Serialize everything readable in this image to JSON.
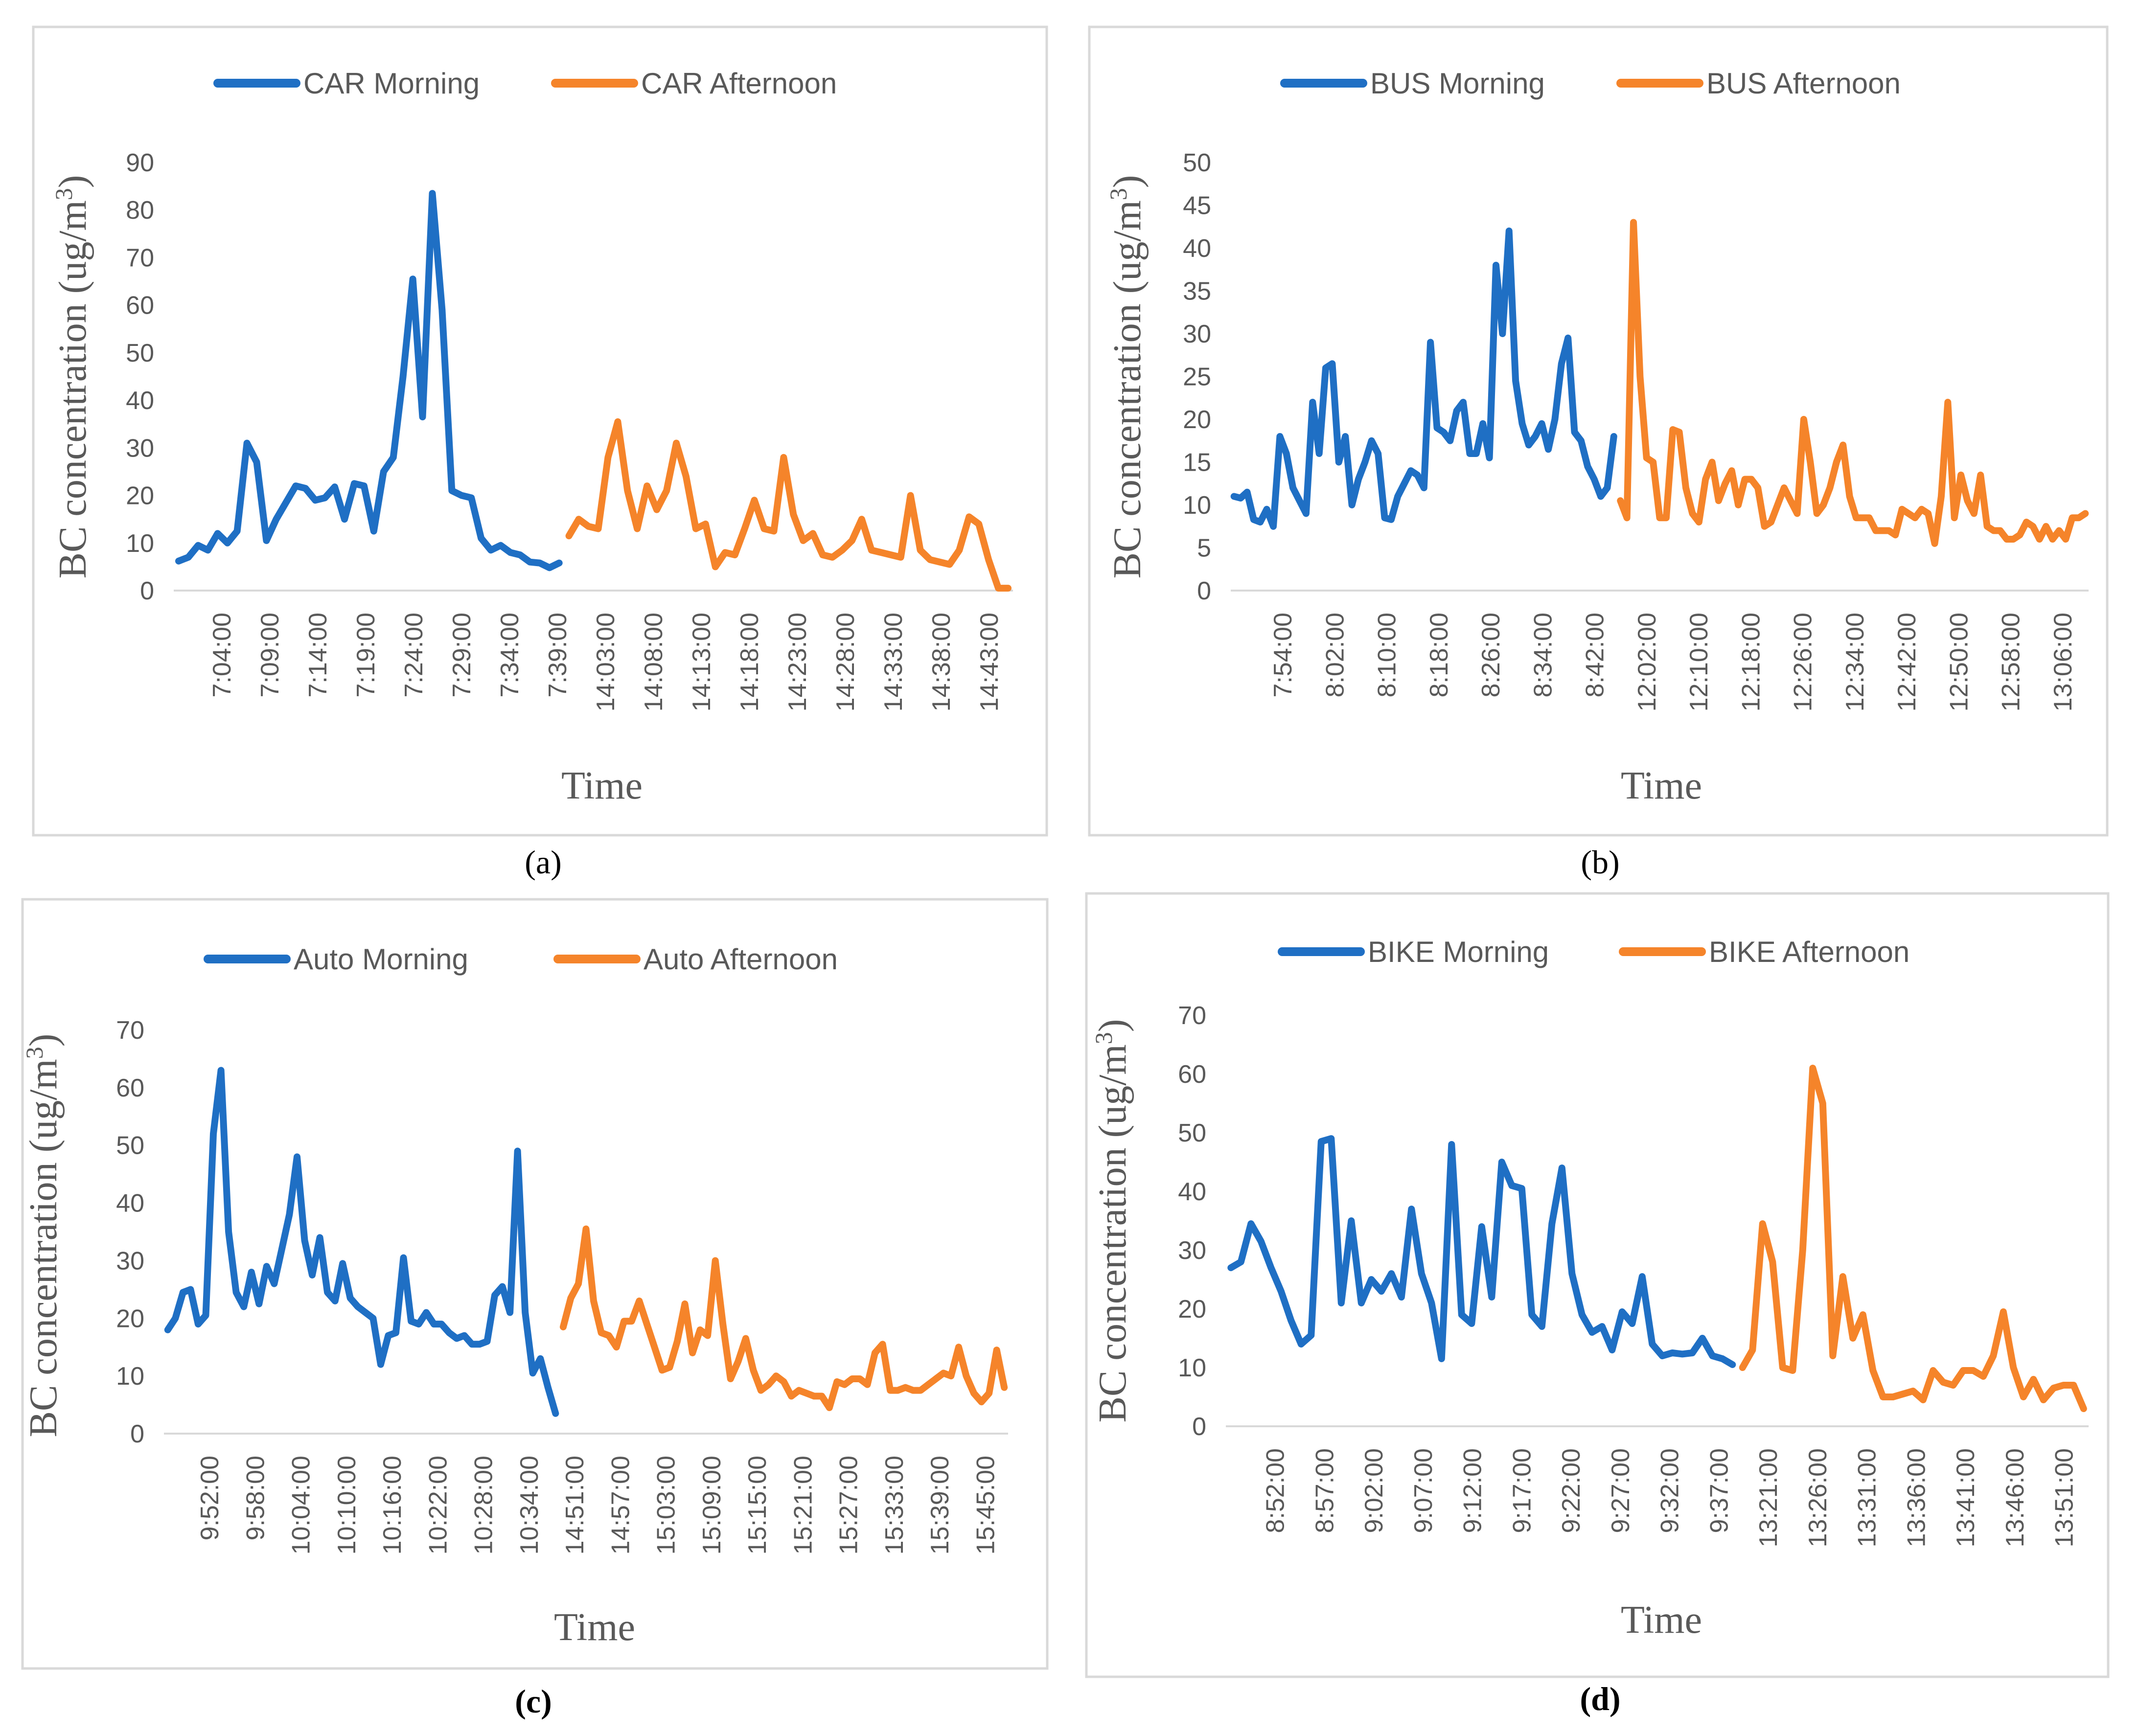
{
  "colors": {
    "morning": "#1f6fc4",
    "afternoon": "#f5842a",
    "text": "#595959",
    "frame": "#d9d9d9"
  },
  "chart_data": [
    {
      "type": "line",
      "panel_label": "(a)",
      "xlabel": "Time",
      "ylabel_main": "BC concentration (ug/m",
      "ylabel_sup": "3",
      "ylabel_end": ")",
      "ylim": [
        0,
        90
      ],
      "yticks": [
        "0",
        "10",
        "20",
        "30",
        "40",
        "50",
        "60",
        "70",
        "80",
        "90"
      ],
      "xticks": [
        "7:04:00",
        "7:09:00",
        "7:14:00",
        "7:19:00",
        "7:24:00",
        "7:29:00",
        "7:34:00",
        "7:39:00",
        "14:03:00",
        "14:08:00",
        "14:13:00",
        "14:18:00",
        "14:23:00",
        "14:28:00",
        "14:33:00",
        "14:38:00",
        "14:43:00"
      ],
      "series": [
        {
          "name": "CAR Morning",
          "color": "#1f6fc4",
          "values": [
            6.2,
            7.0,
            9.5,
            8.5,
            12.0,
            10.0,
            12.5,
            31.0,
            27.0,
            10.5,
            15.0,
            18.5,
            22.0,
            21.5,
            19.0,
            19.5,
            21.8,
            15.0,
            22.5,
            22.0,
            12.5,
            25.0,
            28.0,
            45.0,
            65.5,
            36.5,
            83.5,
            59.0,
            21.0,
            20.0,
            19.5,
            11.0,
            8.5,
            9.5,
            8.0,
            7.5,
            6.0,
            5.8,
            4.8,
            5.8
          ]
        },
        {
          "name": "CAR Afternoon",
          "color": "#f5842a",
          "values": [
            11.5,
            15.0,
            13.5,
            13.0,
            28.0,
            35.5,
            21.0,
            13.0,
            22.0,
            17.0,
            21.0,
            31.0,
            24.0,
            13.0,
            14.0,
            5.0,
            8.0,
            7.5,
            13.0,
            19.0,
            13.0,
            12.5,
            28.0,
            16.0,
            10.5,
            12.0,
            7.5,
            7.0,
            8.5,
            10.5,
            15.0,
            8.5,
            8.0,
            7.5,
            7.0,
            20.0,
            8.5,
            6.5,
            6.0,
            5.5,
            8.5,
            15.5,
            14.0,
            6.5,
            0.5,
            0.5
          ]
        }
      ]
    },
    {
      "type": "line",
      "panel_label": "(b)",
      "xlabel": "Time",
      "ylabel_main": "BC concentration (ug/m",
      "ylabel_sup": "3",
      "ylabel_end": ")",
      "ylim": [
        0,
        50
      ],
      "yticks": [
        "0",
        "5",
        "10",
        "15",
        "20",
        "25",
        "30",
        "35",
        "40",
        "45",
        "50"
      ],
      "xticks": [
        "7:54:00",
        "8:02:00",
        "8:10:00",
        "8:18:00",
        "8:26:00",
        "8:34:00",
        "8:42:00",
        "12:02:00",
        "12:10:00",
        "12:18:00",
        "12:26:00",
        "12:34:00",
        "12:42:00",
        "12:50:00",
        "12:58:00",
        "13:06:00"
      ],
      "series": [
        {
          "name": "BUS Morning",
          "color": "#1f6fc4",
          "values": [
            11.0,
            10.8,
            11.5,
            8.3,
            8.0,
            9.5,
            7.5,
            18.0,
            16.0,
            12.0,
            10.5,
            9.0,
            22.0,
            16.0,
            26.0,
            26.5,
            15.0,
            18.0,
            10.0,
            13.0,
            15.0,
            17.5,
            16.0,
            8.5,
            8.3,
            11.0,
            12.5,
            14.0,
            13.5,
            12.0,
            29.0,
            19.0,
            18.5,
            17.5,
            21.0,
            22.0,
            16.0,
            16.0,
            19.5,
            15.5,
            38.0,
            30.0,
            42.0,
            24.5,
            19.5,
            17.0,
            18.0,
            19.5,
            16.5,
            20.0,
            26.5,
            29.5,
            18.5,
            17.5,
            14.5,
            13.0,
            11.0,
            12.0,
            18.0
          ]
        },
        {
          "name": "BUS Afternoon",
          "color": "#f5842a",
          "values": [
            10.5,
            8.5,
            43.0,
            25.0,
            15.5,
            15.0,
            8.5,
            8.5,
            18.8,
            18.5,
            12.0,
            9.0,
            8.0,
            13.0,
            15.0,
            10.5,
            12.5,
            14.0,
            10.0,
            13.0,
            13.0,
            12.0,
            7.5,
            8.0,
            10.0,
            12.0,
            10.5,
            9.0,
            20.0,
            15.0,
            9.0,
            10.0,
            12.0,
            15.0,
            17.0,
            11.0,
            8.5,
            8.5,
            8.5,
            7.0,
            7.0,
            7.0,
            6.5,
            9.5,
            9.0,
            8.5,
            9.5,
            9.0,
            5.5,
            11.0,
            22.0,
            8.5,
            13.5,
            10.5,
            9.0,
            13.5,
            7.5,
            7.0,
            7.0,
            6.0,
            6.0,
            6.5,
            8.0,
            7.5,
            6.0,
            7.5,
            6.0,
            7.0,
            6.0,
            8.5,
            8.5,
            9.0
          ]
        }
      ]
    },
    {
      "type": "line",
      "panel_label": "(c)",
      "xlabel": "Time",
      "ylabel_main": "BC concentration (ug/m",
      "ylabel_sup": "3",
      "ylabel_end": ")",
      "ylim": [
        0,
        70
      ],
      "yticks": [
        "0",
        "10",
        "20",
        "30",
        "40",
        "50",
        "60",
        "70"
      ],
      "xticks": [
        "9:52:00",
        "9:58:00",
        "10:04:00",
        "10:10:00",
        "10:16:00",
        "10:22:00",
        "10:28:00",
        "10:34:00",
        "14:51:00",
        "14:57:00",
        "15:03:00",
        "15:09:00",
        "15:15:00",
        "15:21:00",
        "15:27:00",
        "15:33:00",
        "15:39:00",
        "15:45:00"
      ],
      "series": [
        {
          "name": "Auto Morning",
          "color": "#1f6fc4",
          "values": [
            18.0,
            20.0,
            24.5,
            25.0,
            19.0,
            20.5,
            52.0,
            63.0,
            35.0,
            24.5,
            22.0,
            28.0,
            22.5,
            29.0,
            26.0,
            32.0,
            38.0,
            48.0,
            33.5,
            27.5,
            34.0,
            24.5,
            23.0,
            29.5,
            23.5,
            22.0,
            21.0,
            20.0,
            12.0,
            17.0,
            17.5,
            30.5,
            19.5,
            19.0,
            21.0,
            19.0,
            19.0,
            17.5,
            16.5,
            17.0,
            15.5,
            15.5,
            16.0,
            24.0,
            25.5,
            21.0,
            49.0,
            21.0,
            10.5,
            13.0,
            8.0,
            3.5
          ]
        },
        {
          "name": "Auto Afternoon",
          "color": "#f5842a",
          "values": [
            18.5,
            23.5,
            26.0,
            35.5,
            23.0,
            17.5,
            17.0,
            15.0,
            19.5,
            19.5,
            23.0,
            19.0,
            15.0,
            11.0,
            11.5,
            16.0,
            22.5,
            14.0,
            18.0,
            17.0,
            30.0,
            19.0,
            9.5,
            12.5,
            16.5,
            11.0,
            7.5,
            8.5,
            10.0,
            9.0,
            6.5,
            7.5,
            7.0,
            6.5,
            6.5,
            4.5,
            9.0,
            8.5,
            9.5,
            9.5,
            8.5,
            14.0,
            15.5,
            7.5,
            7.5,
            8.0,
            7.5,
            7.5,
            8.5,
            9.5,
            10.5,
            10.0,
            15.0,
            10.0,
            7.0,
            5.5,
            7.0,
            14.5,
            8.0
          ]
        }
      ]
    },
    {
      "type": "line",
      "panel_label": "(d)",
      "xlabel": "Time",
      "ylabel_main": "BC concentration (ug/m",
      "ylabel_sup": "3",
      "ylabel_end": ")",
      "ylim": [
        0,
        70
      ],
      "yticks": [
        "0",
        "10",
        "20",
        "30",
        "40",
        "50",
        "60",
        "70"
      ],
      "xticks": [
        "8:52:00",
        "8:57:00",
        "9:02:00",
        "9:07:00",
        "9:12:00",
        "9:17:00",
        "9:22:00",
        "9:27:00",
        "9:32:00",
        "9:37:00",
        "13:21:00",
        "13:26:00",
        "13:31:00",
        "13:36:00",
        "13:41:00",
        "13:46:00",
        "13:51:00"
      ],
      "series": [
        {
          "name": "BIKE Morning",
          "color": "#1f6fc4",
          "values": [
            27.0,
            28.0,
            34.5,
            31.5,
            27.0,
            23.0,
            18.0,
            14.0,
            15.5,
            48.5,
            49.0,
            21.0,
            35.0,
            21.0,
            25.0,
            23.0,
            26.0,
            22.0,
            37.0,
            26.0,
            21.0,
            11.5,
            48.0,
            19.0,
            17.5,
            34.0,
            22.0,
            45.0,
            41.0,
            40.5,
            19.0,
            17.0,
            34.5,
            44.0,
            26.0,
            19.0,
            16.0,
            17.0,
            13.0,
            19.5,
            17.5,
            25.5,
            14.0,
            12.0,
            12.5,
            12.3,
            12.5,
            15.0,
            12.0,
            11.5,
            10.5
          ]
        },
        {
          "name": "BIKE Afternoon",
          "color": "#f5842a",
          "values": [
            10.0,
            13.0,
            34.5,
            28.0,
            10.0,
            9.5,
            30.0,
            61.0,
            55.0,
            12.0,
            25.5,
            15.0,
            19.0,
            9.5,
            5.0,
            5.0,
            5.5,
            6.0,
            4.5,
            9.5,
            7.5,
            7.0,
            9.5,
            9.5,
            8.5,
            12.0,
            19.5,
            10.0,
            5.0,
            8.0,
            4.5,
            6.5,
            7.0,
            7.0,
            3.0
          ]
        }
      ]
    }
  ]
}
